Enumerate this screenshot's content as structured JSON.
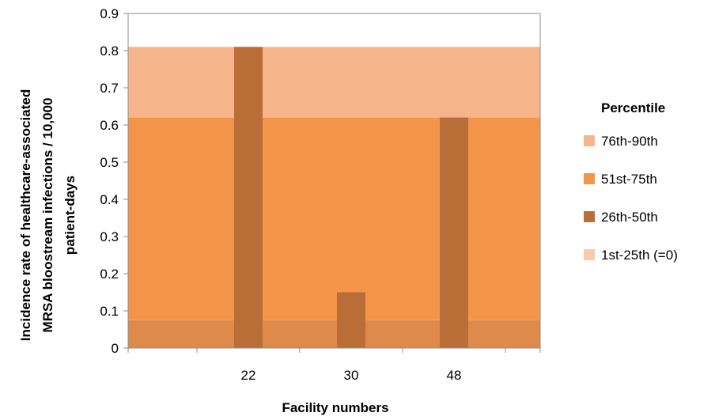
{
  "chart_data": {
    "type": "bar",
    "title": "",
    "xlabel": "Facility numbers",
    "ylabel_lines": [
      "Incidence rate of healthcare-associated",
      "MRSA bloostream infections / 10,000",
      "patient-days"
    ],
    "ylim": [
      0,
      0.9
    ],
    "y_ticks": [
      "0",
      "0.1",
      "0.2",
      "0.3",
      "0.4",
      "0.5",
      "0.6",
      "0.7",
      "0.8",
      "0.9"
    ],
    "categories": [
      "22",
      "30",
      "48"
    ],
    "values": [
      0.81,
      0.15,
      0.62
    ],
    "bar_color": "#B86E36",
    "grid": false,
    "percentile_bands": [
      {
        "label": "1st-25th (=0)",
        "from": 0,
        "to": 0.075,
        "color": "#DE8A4B"
      },
      {
        "label": "26th-50th",
        "from": 0.075,
        "to": 0.62,
        "color": "#F2954B"
      },
      {
        "label": "51st-75th",
        "from": 0.62,
        "to": 0.81,
        "color": "#F6B48B"
      }
    ],
    "legend": {
      "title": "Percentile",
      "position": "right",
      "items": [
        {
          "label": "76th-90th",
          "color": "#F6B48B"
        },
        {
          "label": "51st-75th",
          "color": "#F2954B"
        },
        {
          "label": "26th-50th",
          "color": "#B86E36"
        },
        {
          "label": "1st-25th (=0)",
          "color": "#F8C9AA"
        }
      ]
    }
  }
}
